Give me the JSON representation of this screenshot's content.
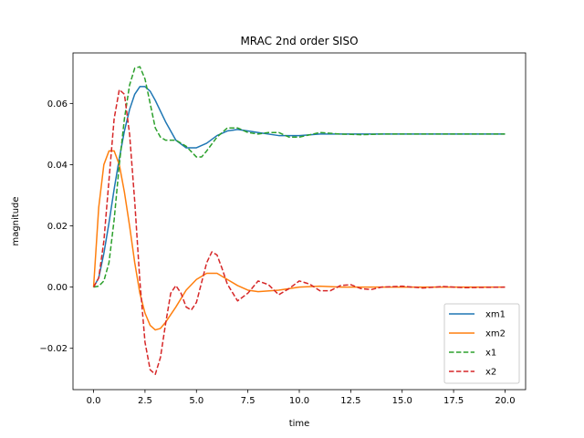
{
  "chart_data": {
    "type": "line",
    "title": "MRAC 2nd order SISO",
    "xlabel": "time",
    "ylabel": "magnitude",
    "xlim": [
      -1.0,
      21.0
    ],
    "ylim": [
      -0.0335,
      0.0765
    ],
    "xticks": [
      0.0,
      2.5,
      5.0,
      7.5,
      10.0,
      12.5,
      15.0,
      17.5,
      20.0
    ],
    "xtick_labels": [
      "0.0",
      "2.5",
      "5.0",
      "7.5",
      "10.0",
      "12.5",
      "15.0",
      "17.5",
      "20.0"
    ],
    "yticks": [
      -0.02,
      0.0,
      0.02,
      0.04,
      0.06
    ],
    "ytick_labels": [
      "−0.02",
      "0.00",
      "0.02",
      "0.04",
      "0.06"
    ],
    "grid": false,
    "legend_position": "lower-right",
    "series": [
      {
        "name": "xm1",
        "color": "#1f77b4",
        "dash": "solid",
        "x": [
          0,
          0.25,
          0.5,
          0.75,
          1.0,
          1.25,
          1.5,
          1.75,
          2.0,
          2.25,
          2.5,
          2.75,
          3.0,
          3.5,
          4.0,
          4.5,
          5.0,
          5.5,
          6.0,
          6.5,
          7.0,
          7.5,
          8.0,
          9.0,
          10.0,
          11.0,
          12.0,
          14.0,
          16.0,
          18.0,
          20.0
        ],
        "y": [
          0,
          0.003,
          0.011,
          0.021,
          0.032,
          0.042,
          0.051,
          0.058,
          0.063,
          0.0655,
          0.0655,
          0.064,
          0.061,
          0.054,
          0.048,
          0.0455,
          0.0455,
          0.047,
          0.0495,
          0.051,
          0.0515,
          0.051,
          0.0505,
          0.0495,
          0.0495,
          0.05,
          0.05,
          0.05,
          0.05,
          0.05,
          0.05
        ]
      },
      {
        "name": "xm2",
        "color": "#ff7f0e",
        "dash": "solid",
        "x": [
          0,
          0.25,
          0.5,
          0.75,
          1.0,
          1.25,
          1.5,
          1.75,
          2.0,
          2.25,
          2.5,
          2.75,
          3.0,
          3.25,
          3.5,
          4.0,
          4.5,
          5.0,
          5.5,
          6.0,
          6.5,
          7.0,
          7.5,
          8.0,
          9.0,
          10.0,
          11.0,
          12.0,
          14.0,
          16.0,
          18.0,
          20.0
        ],
        "y": [
          0,
          0.026,
          0.04,
          0.0445,
          0.0445,
          0.04,
          0.031,
          0.02,
          0.008,
          -0.002,
          -0.0085,
          -0.0125,
          -0.014,
          -0.0135,
          -0.0115,
          -0.0065,
          -0.001,
          0.0025,
          0.0045,
          0.0045,
          0.0025,
          0.0005,
          -0.001,
          -0.0015,
          -0.001,
          0.0,
          0.0003,
          0.0,
          0.0,
          0.0,
          0.0,
          0.0
        ]
      },
      {
        "name": "x1",
        "color": "#2ca02c",
        "dash": "dashed",
        "x": [
          0,
          0.25,
          0.5,
          0.75,
          1.0,
          1.25,
          1.5,
          1.75,
          2.0,
          2.25,
          2.5,
          2.75,
          3.0,
          3.25,
          3.5,
          4.0,
          4.5,
          5.0,
          5.25,
          5.5,
          6.0,
          6.5,
          7.0,
          7.5,
          8.0,
          8.5,
          9.0,
          9.5,
          10.0,
          11.0,
          12.0,
          13.0,
          14.0,
          16.0,
          18.0,
          20.0
        ],
        "y": [
          0,
          0.0003,
          0.002,
          0.008,
          0.022,
          0.04,
          0.055,
          0.066,
          0.0715,
          0.072,
          0.068,
          0.06,
          0.052,
          0.049,
          0.048,
          0.048,
          0.046,
          0.0425,
          0.0425,
          0.0445,
          0.049,
          0.052,
          0.052,
          0.0505,
          0.05,
          0.0505,
          0.0505,
          0.049,
          0.049,
          0.0505,
          0.05,
          0.0498,
          0.05,
          0.05,
          0.05,
          0.05
        ]
      },
      {
        "name": "x2",
        "color": "#d62728",
        "dash": "dashed",
        "x": [
          0,
          0.25,
          0.5,
          0.75,
          1.0,
          1.25,
          1.5,
          1.75,
          2.0,
          2.25,
          2.5,
          2.75,
          3.0,
          3.25,
          3.5,
          3.75,
          4.0,
          4.25,
          4.5,
          4.75,
          5.0,
          5.25,
          5.5,
          5.75,
          6.0,
          6.25,
          6.5,
          7.0,
          7.5,
          8.0,
          8.5,
          9.0,
          9.5,
          10.0,
          10.5,
          11.0,
          11.5,
          12.0,
          12.5,
          13.0,
          13.5,
          14.0,
          15.0,
          16.0,
          17.0,
          18.0,
          20.0
        ],
        "y": [
          0,
          0.003,
          0.015,
          0.035,
          0.055,
          0.0645,
          0.063,
          0.05,
          0.028,
          0.002,
          -0.018,
          -0.027,
          -0.0285,
          -0.023,
          -0.012,
          -0.002,
          0.0005,
          -0.002,
          -0.0065,
          -0.0075,
          -0.005,
          0.0015,
          0.008,
          0.0115,
          0.0105,
          0.006,
          0.001,
          -0.0045,
          -0.002,
          0.002,
          0.0008,
          -0.0025,
          -0.0005,
          0.002,
          0.001,
          -0.0012,
          -0.0012,
          0.0005,
          0.0008,
          -0.0005,
          -0.0008,
          0.0,
          0.0003,
          -0.0003,
          0.0002,
          -0.0002,
          0.0
        ]
      }
    ]
  }
}
